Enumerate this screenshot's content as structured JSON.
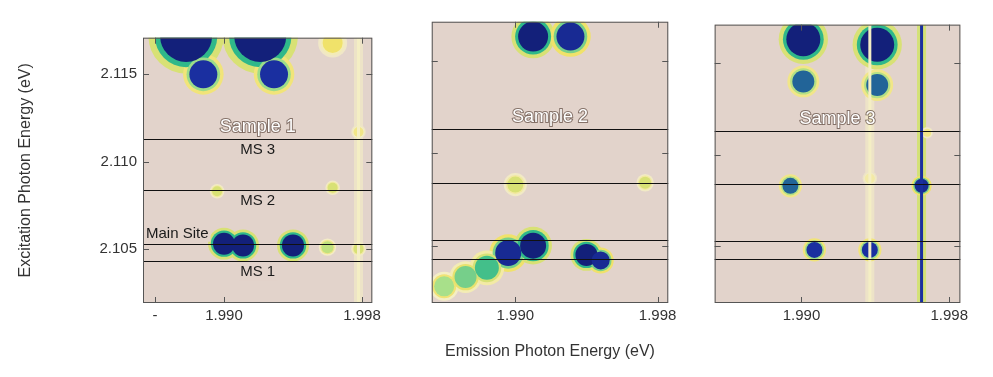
{
  "chart_data": [
    {
      "type": "bubble",
      "title": "Sample 1",
      "ylabel": "Excitation Photon Energy (eV)",
      "xlim": [
        1.9853,
        1.9986
      ],
      "ylim": [
        2.1019,
        2.1171
      ],
      "xticks": [
        {
          "value": 1.986,
          "label": "-"
        },
        {
          "value": 1.99,
          "label": "1.990"
        },
        1.998
      ],
      "yticks": [
        2.105,
        {
          "value": 2.11,
          "label": "2.110"
        },
        2.115
      ],
      "grid": false,
      "x": [
        1.9878,
        1.9888,
        1.9921,
        1.9929,
        1.9963,
        1.99,
        1.9911,
        1.994,
        1.996,
        1.9978,
        1.9896,
        1.9963,
        1.9978
      ],
      "y": [
        2.1172,
        2.115,
        2.1172,
        2.115,
        2.1168,
        2.1053,
        2.1052,
        2.1052,
        2.1051,
        2.105,
        2.1083,
        2.1085,
        2.1117
      ],
      "intensity": [
        1,
        0.85,
        1,
        0.85,
        0.45,
        1,
        1,
        1,
        0.55,
        0.5,
        0.5,
        0.5,
        0.4
      ],
      "size": [
        26,
        14,
        26,
        14,
        10,
        11,
        11,
        11,
        6,
        5,
        5,
        5,
        5
      ],
      "vertical_lines": [
        {
          "x": 1.9978,
          "intensity": 0.3
        }
      ],
      "lines": [
        {
          "value": 2.1113,
          "label": "MS 3"
        },
        {
          "value": 2.1084,
          "label": "MS 2"
        },
        {
          "value": 2.1053,
          "label": "Main Site"
        },
        {
          "value": 2.1043,
          "label": "MS 1"
        }
      ]
    },
    {
      "type": "bubble",
      "title": "Sample 2",
      "xlabel": "Emission Photon Energy (eV)",
      "xlim": [
        1.9853,
        1.9986
      ],
      "ylim": [
        2.1019,
        2.1171
      ],
      "xticks": [
        {
          "value": 1.99,
          "label": "1.990"
        },
        1.998
      ],
      "yticks": [
        2.105,
        {
          "value": 2.11,
          "label": "2.110"
        },
        2.115
      ],
      "grid": false,
      "tick_labels": "x",
      "x": [
        1.991,
        1.9931,
        1.99,
        1.9973,
        1.9896,
        1.991,
        1.994,
        1.9948,
        1.986,
        1.9872,
        1.9884
      ],
      "y": [
        2.1163,
        2.1163,
        2.1083,
        2.1084,
        2.1046,
        2.105,
        2.1045,
        2.1042,
        2.1028,
        2.1033,
        2.1038
      ],
      "intensity": [
        1,
        0.9,
        0.5,
        0.5,
        0.9,
        1,
        1,
        0.9,
        0.6,
        0.65,
        0.7
      ],
      "size": [
        15,
        14,
        8,
        6,
        13,
        13,
        11,
        9,
        10,
        11,
        12
      ],
      "lines": [
        2.1113,
        2.1084,
        2.1053,
        2.1043
      ]
    },
    {
      "type": "bubble",
      "title": "Sample 3",
      "xlim": [
        1.9853,
        1.9986
      ],
      "ylim": [
        2.1019,
        2.1171
      ],
      "xticks": [
        {
          "value": 1.99,
          "label": "1.990"
        },
        1.998
      ],
      "yticks": [
        2.105,
        {
          "value": 2.11,
          "label": "2.110"
        },
        2.115
      ],
      "grid": false,
      "tick_labels": "x",
      "x": [
        1.9901,
        1.9901,
        1.9941,
        1.9941,
        1.9894,
        1.9937,
        1.9907,
        1.9937,
        1.9965,
        1.9968
      ],
      "y": [
        2.1163,
        2.114,
        2.116,
        2.1138,
        2.1083,
        2.1087,
        2.1048,
        2.1048,
        2.1083,
        2.1112
      ],
      "intensity": [
        1,
        0.8,
        1,
        0.8,
        0.8,
        0.35,
        0.85,
        0.85,
        0.9,
        0.4
      ],
      "size": [
        17,
        11,
        17,
        11,
        8,
        5,
        8,
        8,
        7,
        4
      ],
      "vertical_lines": [
        {
          "x": 1.9965,
          "intensity": 0.85
        },
        {
          "x": 1.9937,
          "intensity": 0.3
        }
      ],
      "lines": [
        2.1113,
        2.1084,
        2.1053,
        2.1043
      ]
    }
  ]
}
